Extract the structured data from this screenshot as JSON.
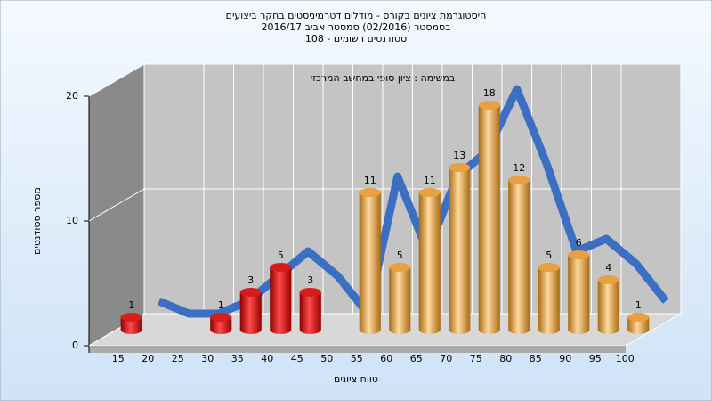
{
  "chart_data": {
    "type": "bar",
    "title": [
      "היסטוגרמת ציונים בקורס - מודלים דטרמיניסטים בחקר ביצועים",
      "בסמסטר  (02/2016)  סמסטר אביב 2016/17",
      "סטודנטים רשומים - 108"
    ],
    "annotation": "במשימה : ציון סופי במחשב המרכזי",
    "x_label": "טווח ציונים",
    "y_label": "מספר סטודנטים",
    "categories": [
      "15",
      "20",
      "25",
      "30",
      "35",
      "40",
      "45",
      "50",
      "55",
      "60",
      "65",
      "70",
      "75",
      "80",
      "85",
      "90",
      "95",
      "100"
    ],
    "values": [
      1,
      0,
      0,
      1,
      3,
      5,
      3,
      0,
      11,
      5,
      11,
      13,
      18,
      12,
      5,
      6,
      4,
      1
    ],
    "colors": [
      "#d81c1c",
      "#d81c1c",
      "#d81c1c",
      "#d81c1c",
      "#d81c1c",
      "#d81c1c",
      "#d81c1c",
      "#d81c1c",
      "#e8a040",
      "#e8a040",
      "#e8a040",
      "#e8a040",
      "#e8a040",
      "#e8a040",
      "#e8a040",
      "#e8a040",
      "#e8a040",
      "#e8a040"
    ],
    "line_color": "#3a6fc4",
    "ylim": [
      0,
      20
    ],
    "yticks": [
      0,
      10,
      20
    ],
    "grid": true
  }
}
